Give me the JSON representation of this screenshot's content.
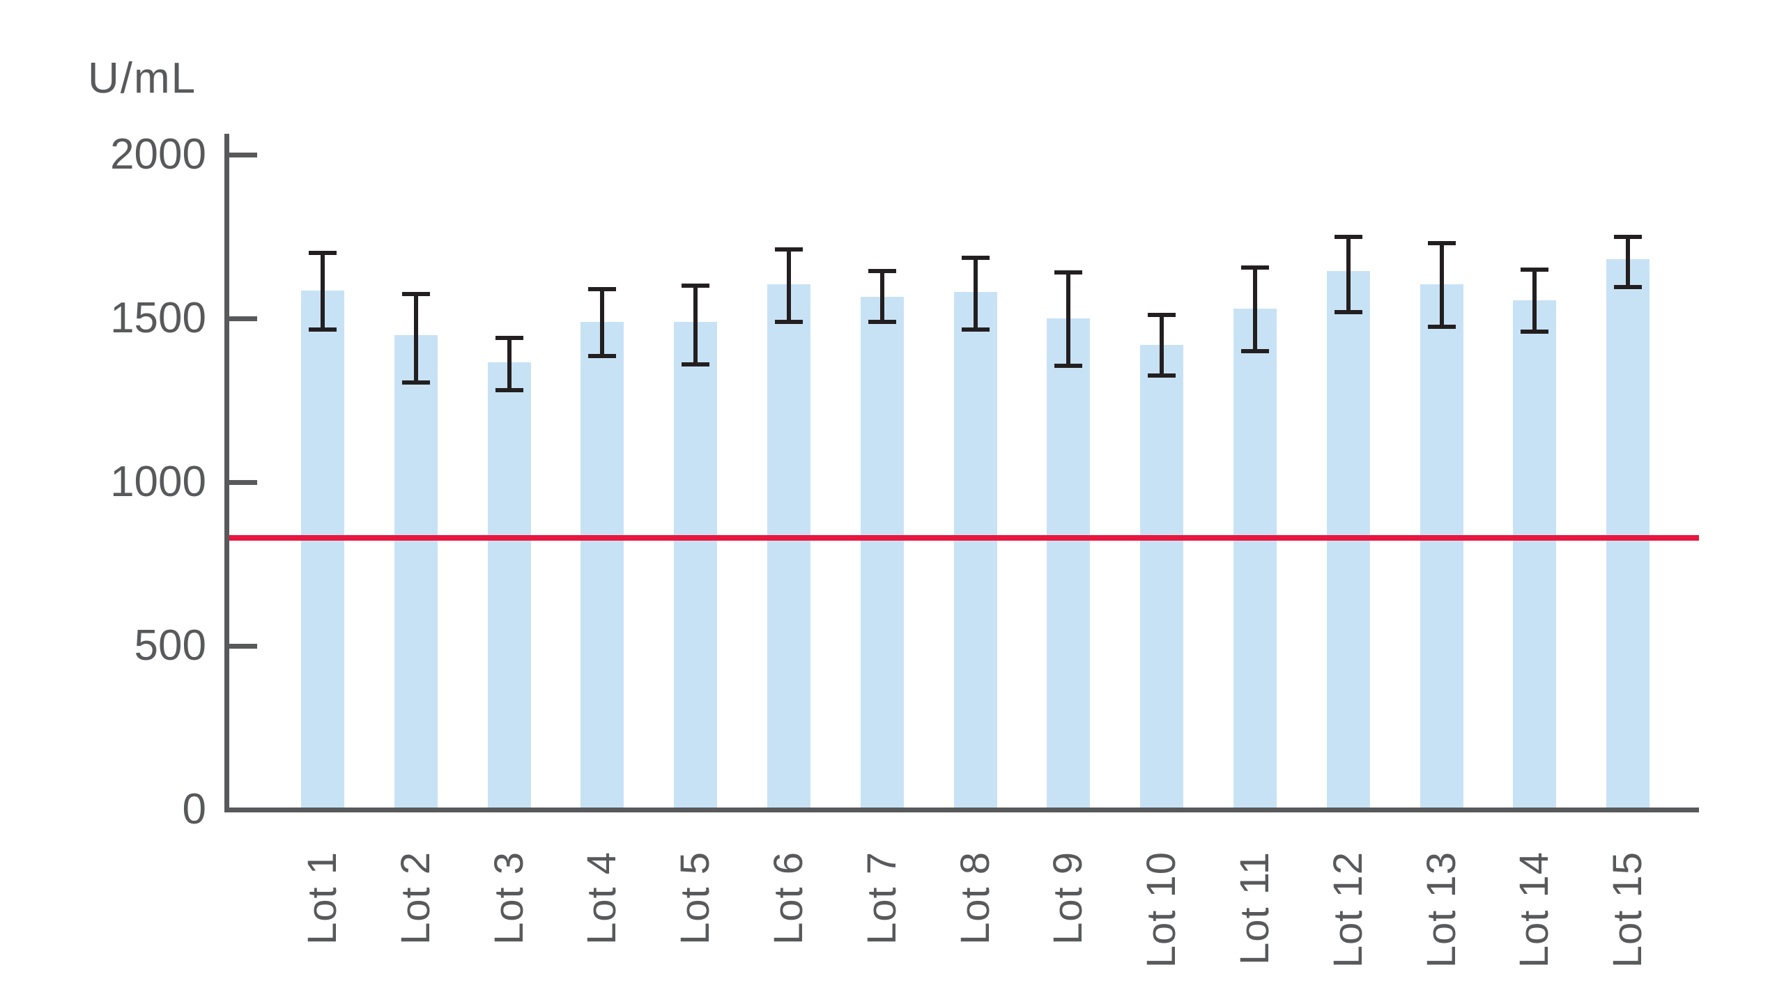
{
  "chart_data": {
    "type": "bar",
    "title": "",
    "ylabel": "U/mL",
    "xlabel": "",
    "categories": [
      "Lot 1",
      "Lot 2",
      "Lot 3",
      "Lot 4",
      "Lot 5",
      "Lot 6",
      "Lot 7",
      "Lot 8",
      "Lot 9",
      "Lot 10",
      "Lot 11",
      "Lot 12",
      "Lot 13",
      "Lot 14",
      "Lot 15"
    ],
    "values": [
      1585,
      1450,
      1365,
      1490,
      1490,
      1605,
      1565,
      1580,
      1500,
      1420,
      1530,
      1645,
      1605,
      1555,
      1680
    ],
    "error_up": [
      115,
      125,
      75,
      100,
      110,
      105,
      80,
      105,
      140,
      90,
      125,
      105,
      125,
      95,
      70
    ],
    "error_down": [
      120,
      145,
      85,
      105,
      130,
      115,
      75,
      115,
      145,
      95,
      130,
      125,
      130,
      95,
      85
    ],
    "ylim": [
      0,
      2000
    ],
    "y_ticks": [
      0,
      500,
      1000,
      1500,
      2000
    ],
    "y_tick_labels": [
      "0",
      "500",
      "1000",
      "1500",
      "2000"
    ],
    "grid": false,
    "legend_position": "none",
    "reference_line": {
      "value": 830
    },
    "colors": {
      "bar_fill": "#c8e2f5",
      "error_bar": "#231f20",
      "axis": "#58595b",
      "reference_line": "#e8173f",
      "background": "#ffffff"
    }
  }
}
